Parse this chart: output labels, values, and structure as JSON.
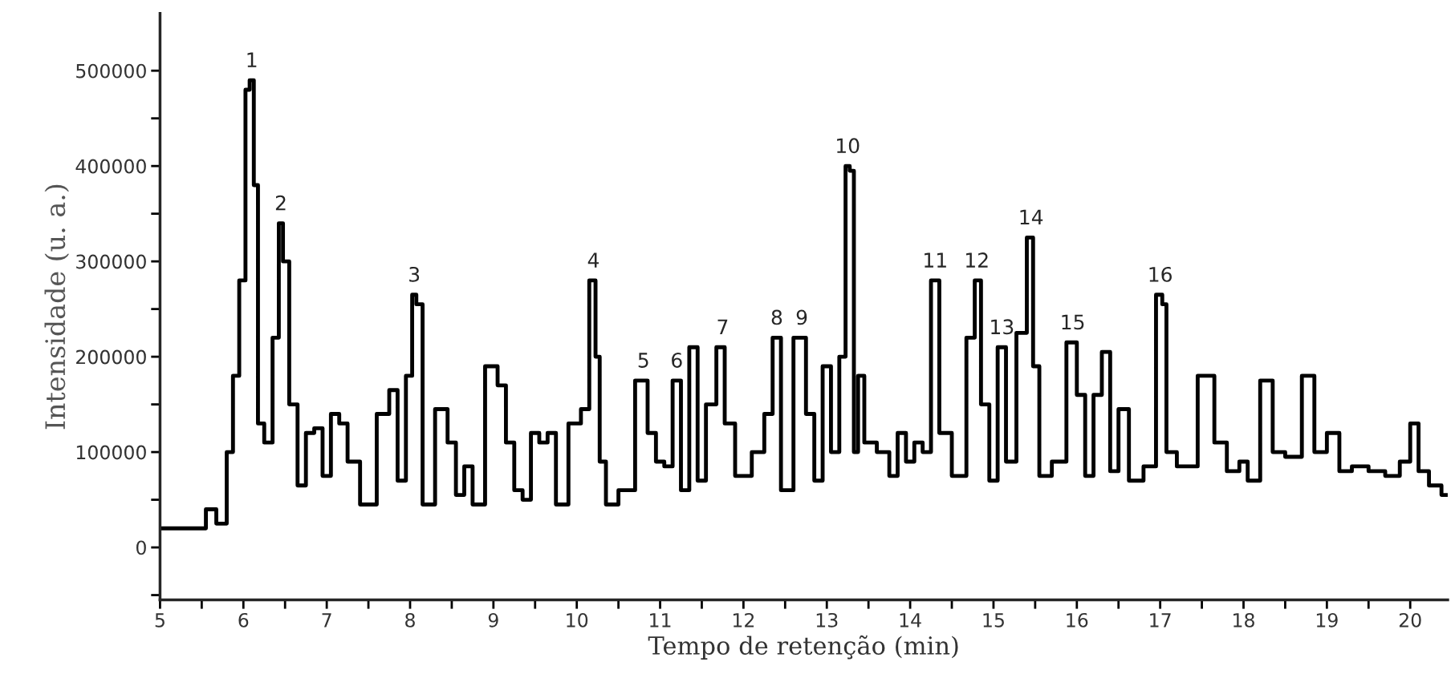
{
  "chart_data": {
    "type": "step",
    "xlabel": "Tempo de retenção (min)",
    "ylabel": "Intensidade (u. a.)",
    "x": [
      5.0,
      5.5,
      5.6,
      5.75,
      5.85,
      5.9,
      6.0,
      6.05,
      6.1,
      6.15,
      6.2,
      6.3,
      6.4,
      6.45,
      6.5,
      6.6,
      6.7,
      6.8,
      6.9,
      7.0,
      7.1,
      7.2,
      7.3,
      7.5,
      7.7,
      7.8,
      7.9,
      8.0,
      8.05,
      8.1,
      8.2,
      8.4,
      8.5,
      8.6,
      8.7,
      8.8,
      9.0,
      9.1,
      9.2,
      9.3,
      9.4,
      9.5,
      9.6,
      9.7,
      9.8,
      10.0,
      10.1,
      10.2,
      10.25,
      10.3,
      10.4,
      10.6,
      10.8,
      10.9,
      11.0,
      11.1,
      11.2,
      11.3,
      11.4,
      11.5,
      11.6,
      11.75,
      11.8,
      12.0,
      12.2,
      12.3,
      12.4,
      12.5,
      12.7,
      12.8,
      12.9,
      13.0,
      13.1,
      13.2,
      13.25,
      13.3,
      13.35,
      13.4,
      13.5,
      13.7,
      13.8,
      13.9,
      14.0,
      14.1,
      14.2,
      14.3,
      14.4,
      14.6,
      14.75,
      14.8,
      14.9,
      15.0,
      15.1,
      15.2,
      15.35,
      15.45,
      15.5,
      15.6,
      15.8,
      15.95,
      16.05,
      16.15,
      16.25,
      16.35,
      16.45,
      16.55,
      16.7,
      16.9,
      17.0,
      17.05,
      17.1,
      17.3,
      17.6,
      17.7,
      17.9,
      18.0,
      18.1,
      18.3,
      18.4,
      18.6,
      18.8,
      18.9,
      19.1,
      19.2,
      19.4,
      19.6,
      19.8,
      19.95,
      20.05,
      20.15,
      20.3,
      20.45
    ],
    "series": [
      {
        "color": "#000000",
        "values": [
          20000,
          20000,
          40000,
          25000,
          100000,
          180000,
          280000,
          480000,
          490000,
          380000,
          130000,
          110000,
          220000,
          340000,
          300000,
          150000,
          65000,
          120000,
          125000,
          75000,
          140000,
          130000,
          90000,
          45000,
          140000,
          165000,
          70000,
          180000,
          265000,
          255000,
          45000,
          145000,
          110000,
          55000,
          85000,
          45000,
          190000,
          170000,
          110000,
          60000,
          50000,
          120000,
          110000,
          120000,
          45000,
          130000,
          145000,
          280000,
          200000,
          90000,
          45000,
          60000,
          175000,
          120000,
          90000,
          85000,
          175000,
          60000,
          210000,
          70000,
          150000,
          210000,
          130000,
          75000,
          100000,
          140000,
          220000,
          60000,
          220000,
          140000,
          70000,
          190000,
          100000,
          200000,
          400000,
          395000,
          100000,
          180000,
          110000,
          100000,
          75000,
          120000,
          90000,
          110000,
          100000,
          280000,
          120000,
          75000,
          220000,
          280000,
          150000,
          70000,
          210000,
          90000,
          225000,
          325000,
          190000,
          75000,
          90000,
          215000,
          160000,
          75000,
          160000,
          205000,
          80000,
          145000,
          70000,
          85000,
          265000,
          255000,
          100000,
          85000,
          180000,
          110000,
          80000,
          90000,
          70000,
          175000,
          100000,
          95000,
          180000,
          100000,
          120000,
          80000,
          85000,
          80000,
          75000,
          90000,
          130000,
          80000,
          65000,
          55000
        ]
      }
    ],
    "xlim": [
      5,
      20.45
    ],
    "xticks": [
      5,
      {
        "value": 5.5,
        "label": null
      },
      6,
      {
        "value": 6.5,
        "label": null
      },
      7,
      {
        "value": 7.5,
        "label": null
      },
      8,
      {
        "value": 8.5,
        "label": null
      },
      9,
      {
        "value": 9.5,
        "label": null
      },
      10,
      {
        "value": 10.5,
        "label": null
      },
      11,
      {
        "value": 11.5,
        "label": null
      },
      12,
      {
        "value": 12.5,
        "label": null
      },
      13,
      {
        "value": 13.5,
        "label": null
      },
      14,
      {
        "value": 14.5,
        "label": null
      },
      15,
      {
        "value": 15.5,
        "label": null
      },
      16,
      {
        "value": 16.5,
        "label": null
      },
      17,
      {
        "value": 17.5,
        "label": null
      },
      18,
      {
        "value": 18.5,
        "label": null
      },
      19,
      {
        "value": 19.5,
        "label": null
      },
      20
    ],
    "ylim": [
      -55000,
      560000
    ],
    "yticks": [
      {
        "value": -50000,
        "label": null
      },
      0,
      {
        "value": 50000,
        "label": null
      },
      100000,
      {
        "value": 150000,
        "label": null
      },
      200000,
      {
        "value": 250000,
        "label": null
      },
      300000,
      {
        "value": 350000,
        "label": null
      },
      400000,
      {
        "value": 450000,
        "label": null
      },
      500000
    ],
    "grid": false,
    "legend": false,
    "annotations": [
      {
        "text": "1",
        "x": 6.1,
        "y": 490000
      },
      {
        "text": "2",
        "x": 6.45,
        "y": 340000
      },
      {
        "text": "3",
        "x": 8.05,
        "y": 265000
      },
      {
        "text": "4",
        "x": 10.2,
        "y": 280000
      },
      {
        "text": "5",
        "x": 10.8,
        "y": 175000
      },
      {
        "text": "6",
        "x": 11.2,
        "y": 175000
      },
      {
        "text": "7",
        "x": 11.75,
        "y": 210000
      },
      {
        "text": "8",
        "x": 12.4,
        "y": 220000
      },
      {
        "text": "9",
        "x": 12.7,
        "y": 220000
      },
      {
        "text": "10",
        "x": 13.25,
        "y": 400000
      },
      {
        "text": "11",
        "x": 14.3,
        "y": 280000
      },
      {
        "text": "12",
        "x": 14.8,
        "y": 280000
      },
      {
        "text": "13",
        "x": 15.1,
        "y": 210000
      },
      {
        "text": "14",
        "x": 15.45,
        "y": 325000
      },
      {
        "text": "15",
        "x": 15.95,
        "y": 215000
      },
      {
        "text": "16",
        "x": 17.0,
        "y": 265000
      }
    ]
  }
}
